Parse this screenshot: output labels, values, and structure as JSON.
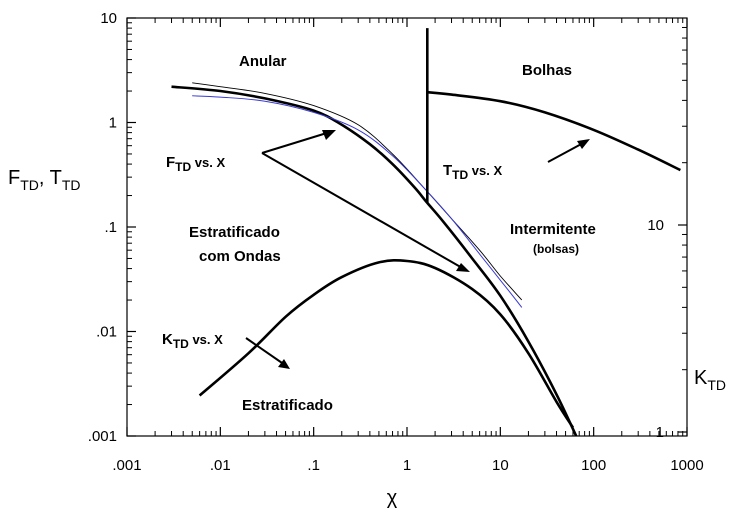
{
  "chart_data": {
    "type": "line",
    "title": "",
    "x_axis": {
      "label": "χ",
      "scale": "log",
      "range": [
        0.001,
        1000
      ],
      "tick_values": [
        0.001,
        0.01,
        0.1,
        1,
        10,
        100,
        1000
      ],
      "tick_labels": [
        ".001",
        ".01",
        ".1",
        "1",
        "10",
        "100",
        "1000"
      ]
    },
    "y_axis_left": {
      "label_main": "F",
      "label_sub": "TD",
      "label_sep": ", ",
      "label_main2": "T",
      "label_sub2": "TD",
      "scale": "log",
      "range": [
        0.001,
        10
      ],
      "tick_values": [
        0.001,
        0.01,
        0.1,
        1,
        10
      ],
      "tick_labels": [
        ".001",
        ".01",
        ".1",
        "1",
        "10"
      ]
    },
    "y_axis_right": {
      "label_main": "K",
      "label_sub": "TD",
      "scale": "log",
      "range": [
        1,
        100
      ],
      "tick_values": [
        1,
        10
      ],
      "tick_labels": [
        "1",
        "10"
      ]
    },
    "regions": [
      {
        "name": "Anular"
      },
      {
        "name": "Bolhas"
      },
      {
        "name": "Estratificado"
      },
      {
        "name": "com Ondas"
      },
      {
        "name": "Intermitente"
      },
      {
        "name": "(bolsas)"
      },
      {
        "name": "Estratificado"
      }
    ],
    "curves": {
      "f_boundary": {
        "axis": "left",
        "x": [
          0.003,
          0.01,
          0.03,
          0.1,
          0.2,
          0.4,
          0.7,
          1.2,
          1.65,
          2.5,
          5,
          10,
          20,
          40,
          65
        ],
        "y": [
          2.2,
          2.0,
          1.7,
          1.3,
          0.95,
          0.62,
          0.4,
          0.24,
          0.17,
          0.11,
          0.05,
          0.022,
          0.008,
          0.0025,
          0.001
        ]
      },
      "f_thin_black": {
        "axis": "left",
        "x": [
          0.005,
          0.01,
          0.03,
          0.1,
          0.3,
          0.7,
          1.5,
          3,
          6,
          10,
          17
        ],
        "y": [
          2.4,
          2.2,
          1.9,
          1.45,
          0.95,
          0.5,
          0.24,
          0.12,
          0.06,
          0.034,
          0.02
        ]
      },
      "f_thin_blue": {
        "axis": "left",
        "x": [
          0.005,
          0.01,
          0.03,
          0.1,
          0.3,
          0.7,
          1.5,
          3,
          6,
          10,
          17
        ],
        "y": [
          1.8,
          1.75,
          1.6,
          1.25,
          0.85,
          0.48,
          0.24,
          0.12,
          0.055,
          0.031,
          0.017
        ]
      },
      "vertical_boundary": {
        "axis": "left",
        "x": [
          1.65,
          1.65
        ],
        "y": [
          0.17,
          8
        ]
      },
      "t_boundary": {
        "axis": "left",
        "x": [
          1.65,
          3,
          10,
          30,
          100,
          300,
          850
        ],
        "y": [
          1.95,
          1.85,
          1.6,
          1.25,
          0.85,
          0.55,
          0.35
        ]
      },
      "k_boundary": {
        "axis": "right",
        "x": [
          0.006,
          0.02,
          0.05,
          0.1,
          0.2,
          0.5,
          1,
          2,
          5,
          10,
          20,
          40,
          60
        ],
        "y": [
          1.5,
          2.4,
          3.6,
          4.6,
          5.6,
          6.6,
          6.7,
          6.2,
          4.9,
          3.7,
          2.4,
          1.4,
          1.05
        ]
      }
    },
    "annotations": [
      {
        "main": "F",
        "sub": "TD",
        "suffix": " vs. X"
      },
      {
        "main": "T",
        "sub": "TD",
        "suffix": " vs. X"
      },
      {
        "main": "K",
        "sub": "TD",
        "suffix": " vs. X"
      }
    ],
    "colors": {
      "line": "#000000",
      "blue_curve": "#3a3ad6"
    }
  }
}
